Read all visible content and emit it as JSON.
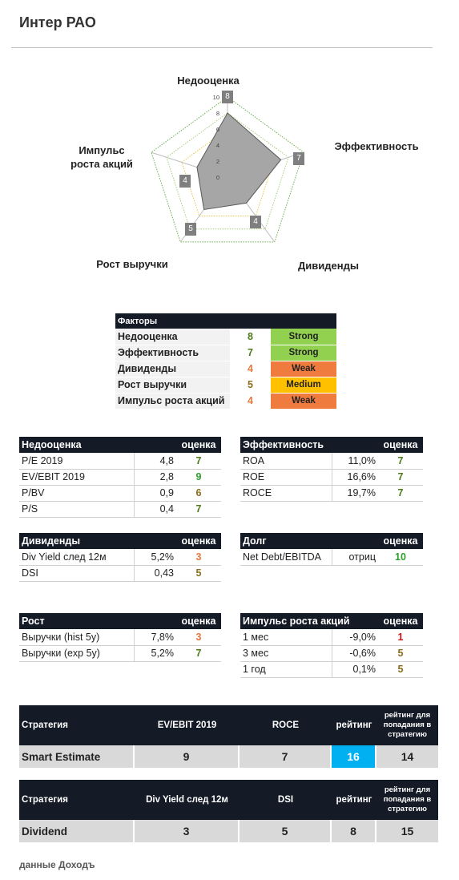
{
  "title": "Интер РАО",
  "radar": {
    "labels": [
      "Недооценка",
      "Эффективность",
      "Дивиденды",
      "Рост выручки",
      "Импульс\nроста акций"
    ],
    "values": [
      8,
      7,
      4,
      5,
      4
    ],
    "max": 10,
    "ticks": [
      "0",
      "2",
      "4",
      "6",
      "8",
      "10"
    ]
  },
  "factors": {
    "header": "Факторы",
    "rows": [
      {
        "name": "Недооценка",
        "score": "8",
        "level": "Strong",
        "color": "#92d050"
      },
      {
        "name": "Эффективность",
        "score": "7",
        "level": "Strong",
        "color": "#92d050"
      },
      {
        "name": "Дивиденды",
        "score": "4",
        "level": "Weak",
        "color": "#f07b3f"
      },
      {
        "name": "Рост выручки",
        "score": "5",
        "level": "Medium",
        "color": "#ffc000"
      },
      {
        "name": "Импульс роста акций",
        "score": "4",
        "level": "Weak",
        "color": "#f07b3f"
      }
    ]
  },
  "valuation": {
    "title": "Недооценка",
    "score_header": "оценка",
    "rows": [
      {
        "name": "P/E 2019",
        "value": "4,8",
        "score": "7"
      },
      {
        "name": "EV/EBIT 2019",
        "value": "2,8",
        "score": "9"
      },
      {
        "name": "P/BV",
        "value": "0,9",
        "score": "6"
      },
      {
        "name": "P/S",
        "value": "0,4",
        "score": "7"
      }
    ]
  },
  "efficiency": {
    "title": "Эффективность",
    "score_header": "оценка",
    "rows": [
      {
        "name": "ROA",
        "value": "11,0%",
        "score": "7"
      },
      {
        "name": "ROE",
        "value": "16,6%",
        "score": "7"
      },
      {
        "name": "ROCE",
        "value": "19,7%",
        "score": "7"
      }
    ]
  },
  "dividends": {
    "title": "Дивиденды",
    "score_header": "оценка",
    "rows": [
      {
        "name": "Div Yield след 12м",
        "value": "5,2%",
        "score": "3"
      },
      {
        "name": "DSI",
        "value": "0,43",
        "score": "5"
      }
    ]
  },
  "debt": {
    "title": "Долг",
    "score_header": "оценка",
    "rows": [
      {
        "name": "Net Debt/EBITDA",
        "value": "отриц",
        "score": "10"
      }
    ]
  },
  "growth": {
    "title": "Рост",
    "score_header": "оценка",
    "rows": [
      {
        "name": "Выручки (hist 5y)",
        "value": "7,8%",
        "score": "3"
      },
      {
        "name": "Выручки (exp 5y)",
        "value": "5,2%",
        "score": "7"
      }
    ]
  },
  "momentum": {
    "title": "Импульс роста акций",
    "score_header": "оценка",
    "rows": [
      {
        "name": "1 мес",
        "value": "-9,0%",
        "score": "1"
      },
      {
        "name": "3 мес",
        "value": "-0,6%",
        "score": "5"
      },
      {
        "name": "1 год",
        "value": "0,1%",
        "score": "5"
      }
    ]
  },
  "strategy1": {
    "headers": [
      "Стратегия",
      "EV/EBIT 2019",
      "ROCE",
      "рейтинг",
      "рейтинг для попадания в стратегию"
    ],
    "values": [
      "Smart Estimate",
      "9",
      "7",
      "16",
      "14"
    ],
    "highlight_color": "#00b0f0"
  },
  "strategy2": {
    "headers": [
      "Стратегия",
      "Div Yield след 12м",
      "DSI",
      "рейтинг",
      "рейтинг для попадания в стратегию"
    ],
    "values": [
      "Dividend",
      "3",
      "5",
      "8",
      "15"
    ]
  },
  "footer": "данные Доходъ"
}
